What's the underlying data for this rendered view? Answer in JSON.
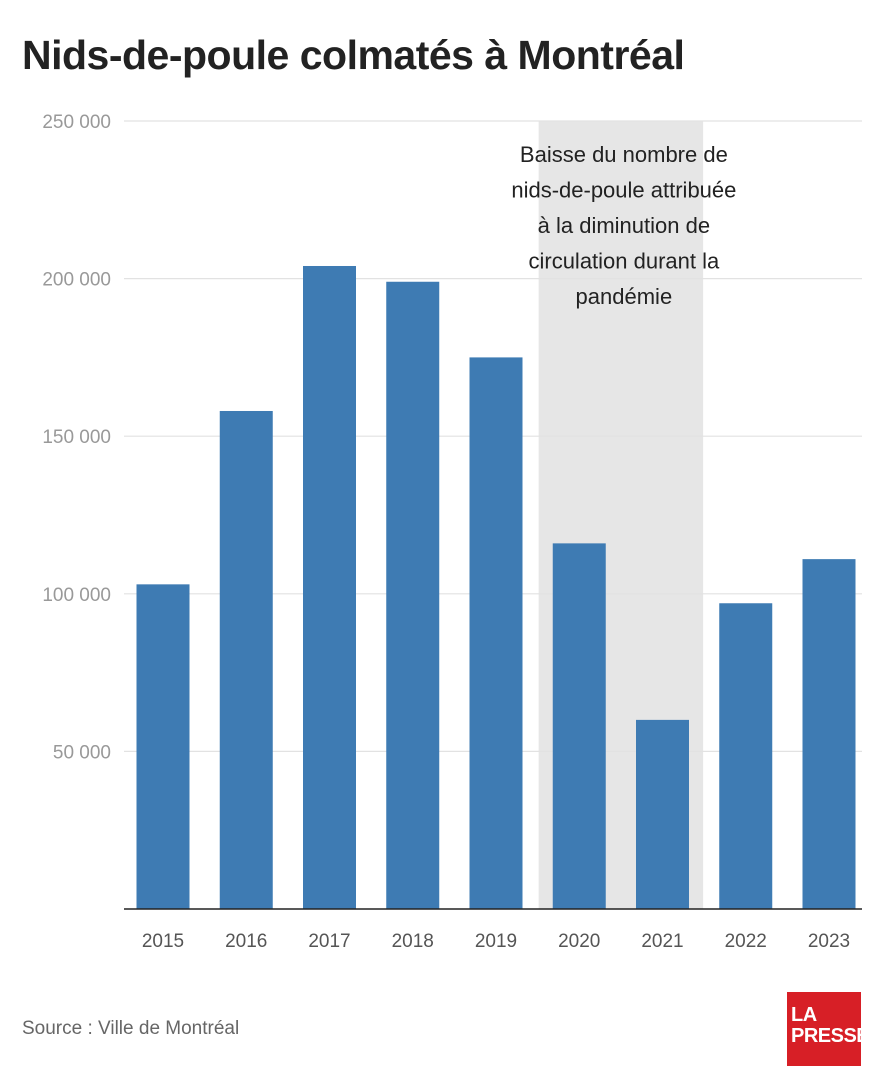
{
  "title": "Nids-de-poule colmatés à Montréal",
  "source": "Source : Ville de Montréal",
  "logo": {
    "line1": "LA",
    "line2": "PRESSE"
  },
  "colors": {
    "bar": "#3e7bb3",
    "shade": "#e6e6e6",
    "grid": "#e2e2e2",
    "axis": "#222222",
    "tick": "#999999",
    "brand": "#d71f26"
  },
  "chart_data": {
    "type": "bar",
    "title": "Nids-de-poule colmatés à Montréal",
    "categories": [
      "2015",
      "2016",
      "2017",
      "2018",
      "2019",
      "2020",
      "2021",
      "2022",
      "2023"
    ],
    "values": [
      103000,
      158000,
      204000,
      199000,
      175000,
      116000,
      60000,
      97000,
      111000
    ],
    "ylim": [
      0,
      250000
    ],
    "yticks": [
      50000,
      100000,
      150000,
      200000,
      250000
    ],
    "ytick_labels": [
      "50 000",
      "100 000",
      "150 000",
      "200 000",
      "250 000"
    ],
    "grid": true,
    "highlight": {
      "from": "2020",
      "to": "2021",
      "annotation": [
        "Baisse du nombre de",
        "nids-de-poule attribuée",
        "à la diminution de",
        "circulation durant la",
        "pandémie"
      ]
    }
  }
}
